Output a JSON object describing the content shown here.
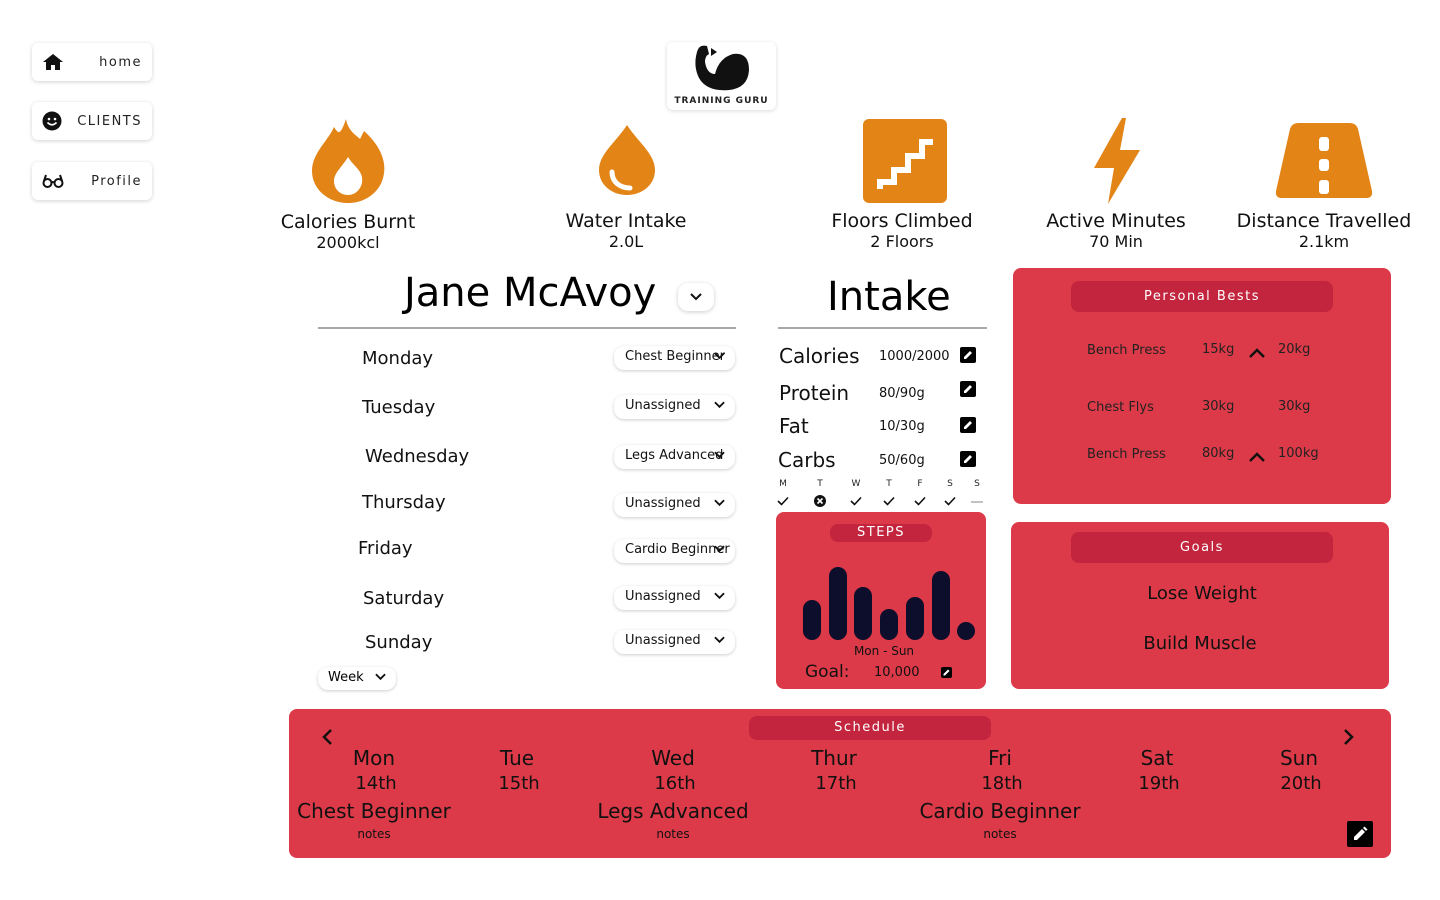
{
  "nav": {
    "home": "home",
    "clients": "CLIENTS",
    "profile": "Profile"
  },
  "logo": {
    "text": "TRAINING GURU"
  },
  "stats": {
    "calories": {
      "name": "Calories Burnt",
      "value": "2000kcl"
    },
    "water": {
      "name": "Water Intake",
      "value": "2.0L"
    },
    "floors": {
      "name": "Floors Climbed",
      "value": "2 Floors"
    },
    "active": {
      "name": "Active Minutes",
      "value": "70 Min"
    },
    "distance": {
      "name": "Distance Travelled",
      "value": "2.1km"
    }
  },
  "client": {
    "name": "Jane McAvoy",
    "plan": [
      {
        "day": "Monday",
        "workout": "Chest Beginner"
      },
      {
        "day": "Tuesday",
        "workout": "Unassigned"
      },
      {
        "day": "Wednesday",
        "workout": "Legs Advanced"
      },
      {
        "day": "Thursday",
        "workout": "Unassigned"
      },
      {
        "day": "Friday",
        "workout": "Cardio Beginner"
      },
      {
        "day": "Saturday",
        "workout": "Unassigned"
      },
      {
        "day": "Sunday",
        "workout": "Unassigned"
      }
    ],
    "period": "Week"
  },
  "intake": {
    "title": "Intake",
    "rows": [
      {
        "label": "Calories",
        "value": "1000/2000"
      },
      {
        "label": "Protein",
        "value": "80/90g"
      },
      {
        "label": "Fat",
        "value": "10/30g"
      },
      {
        "label": "Carbs",
        "value": "50/60g"
      }
    ],
    "week": [
      {
        "letter": "M",
        "status": "check"
      },
      {
        "letter": "T",
        "status": "cross"
      },
      {
        "letter": "W",
        "status": "check"
      },
      {
        "letter": "T",
        "status": "check"
      },
      {
        "letter": "F",
        "status": "check"
      },
      {
        "letter": "S",
        "status": "check"
      },
      {
        "letter": "S",
        "status": "none"
      }
    ]
  },
  "steps": {
    "title": "STEPS",
    "range": "Mon - Sun",
    "goal_label": "Goal:",
    "goal_value": "10,000",
    "daily_fraction": [
      0.47,
      0.86,
      0.63,
      0.36,
      0.51,
      0.81,
      0.2
    ]
  },
  "personal_bests": {
    "title": "Personal Bests",
    "rows": [
      {
        "exercise": "Bench Press",
        "previous": "15kg",
        "trend": "up",
        "current": "20kg"
      },
      {
        "exercise": "Chest Flys",
        "previous": "30kg",
        "trend": "same",
        "current": "30kg"
      },
      {
        "exercise": "Bench Press",
        "previous": "80kg",
        "trend": "up",
        "current": "100kg"
      }
    ]
  },
  "goals": {
    "title": "Goals",
    "items": [
      "Lose Weight",
      "Build Muscle"
    ]
  },
  "schedule": {
    "title": "Schedule",
    "days": [
      {
        "day": "Mon",
        "date": "14th",
        "workout": "Chest Beginner",
        "notes": "notes"
      },
      {
        "day": "Tue",
        "date": "15th",
        "workout": "",
        "notes": ""
      },
      {
        "day": "Wed",
        "date": "16th",
        "workout": "Legs Advanced",
        "notes": "notes"
      },
      {
        "day": "Thur",
        "date": "17th",
        "workout": "",
        "notes": ""
      },
      {
        "day": "Fri",
        "date": "18th",
        "workout": "Cardio Beginner",
        "notes": "notes"
      },
      {
        "day": "Sat",
        "date": "19th",
        "workout": "",
        "notes": ""
      },
      {
        "day": "Sun",
        "date": "20th",
        "workout": "",
        "notes": ""
      }
    ]
  },
  "colors": {
    "accent_orange": "#e28416",
    "panel_red": "#dc3a48",
    "pill_red": "#c2253d",
    "bar_navy": "#0d0d2c"
  },
  "icons": {
    "nav_home": "home-icon",
    "nav_clients": "smiley-icon",
    "nav_profile": "glasses-icon",
    "stat_calories": "flame-icon",
    "stat_water": "water-drop-icon",
    "stat_floors": "stairs-icon",
    "stat_active": "lightning-icon",
    "stat_distance": "road-icon"
  }
}
